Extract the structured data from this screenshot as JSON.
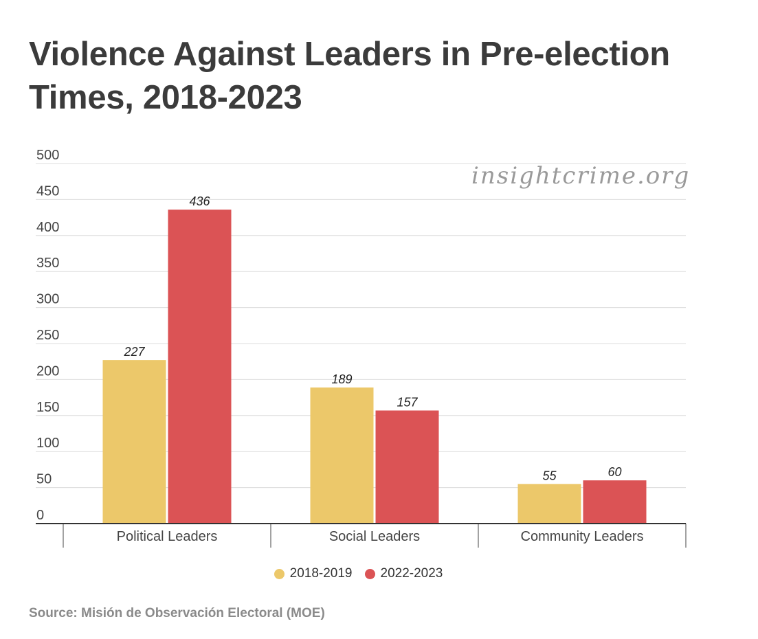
{
  "chart_data": {
    "type": "bar",
    "title": "Violence Against Leaders in Pre-election Times, 2018-2023",
    "categories": [
      "Political Leaders",
      "Social Leaders",
      "Community Leaders"
    ],
    "series": [
      {
        "name": "2018-2019",
        "values": [
          227,
          189,
          55
        ],
        "color": "#ecc86a"
      },
      {
        "name": "2022-2023",
        "values": [
          436,
          157,
          60
        ],
        "color": "#db5355"
      }
    ],
    "ylim": [
      0,
      500
    ],
    "yticks": [
      0,
      50,
      100,
      150,
      200,
      250,
      300,
      350,
      400,
      450,
      500
    ],
    "grid": true,
    "legend_position": "bottom",
    "xlabel": "",
    "ylabel": ""
  },
  "source": "Source: Misión de Observación Electoral (MOE)",
  "watermark": "insightcrime.org"
}
